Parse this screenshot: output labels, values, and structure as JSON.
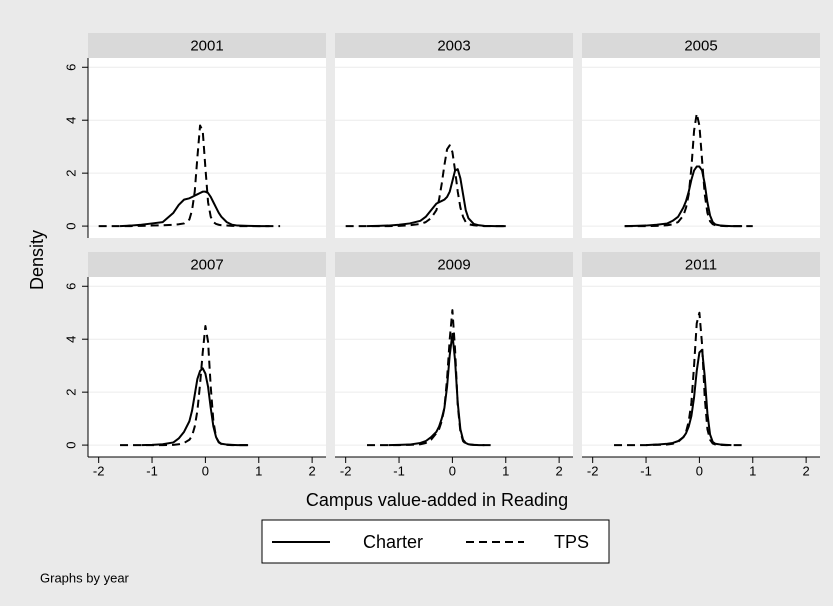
{
  "xlabel": "Campus value-added in Reading",
  "ylabel": "Density",
  "note": "Graphs by year",
  "chart_data": [
    {
      "type": "line",
      "title": "2001",
      "xlim": [
        -2.2,
        2.26
      ],
      "ylim": [
        -0.45,
        6.35
      ],
      "xticks": [
        -2,
        -1,
        0,
        1,
        2
      ],
      "yticks": [
        0,
        2,
        4,
        6
      ],
      "grid": true,
      "x": [
        -2.0,
        -1.6,
        -1.4,
        -1.2,
        -1.0,
        -0.8,
        -0.6,
        -0.5,
        -0.4,
        -0.3,
        -0.25,
        -0.2,
        -0.15,
        -0.1,
        -0.05,
        0,
        0.05,
        0.1,
        0.15,
        0.2,
        0.25,
        0.3,
        0.4,
        0.5,
        0.6,
        0.8,
        1.0,
        1.2,
        1.4
      ],
      "series": [
        {
          "name": "Charter",
          "color": "#000000",
          "dash": "solid",
          "values": [
            null,
            0,
            0.02,
            0.05,
            0.1,
            0.15,
            0.5,
            0.8,
            1.0,
            1.05,
            1.1,
            1.15,
            1.2,
            1.25,
            1.3,
            1.3,
            1.25,
            1.1,
            0.9,
            0.7,
            0.5,
            0.35,
            0.15,
            0.05,
            0.02,
            0.01,
            0,
            0,
            null
          ]
        },
        {
          "name": "TPS",
          "color": "#000000",
          "dash": "dashed",
          "values": [
            0,
            0,
            0,
            0.01,
            0.02,
            0.03,
            0.05,
            0.07,
            0.1,
            0.25,
            0.6,
            1.3,
            2.6,
            3.8,
            3.6,
            2.2,
            0.9,
            0.35,
            0.15,
            0.08,
            0.05,
            0.03,
            0.02,
            0.01,
            0,
            0,
            0,
            0,
            0
          ]
        }
      ]
    },
    {
      "type": "line",
      "title": "2003",
      "xlim": [
        -2.2,
        2.26
      ],
      "ylim": [
        -0.45,
        6.35
      ],
      "xticks": [
        -2,
        -1,
        0,
        1,
        2
      ],
      "yticks": [
        0,
        2,
        4,
        6
      ],
      "grid": true,
      "x": [
        -2.0,
        -1.6,
        -1.4,
        -1.2,
        -1.0,
        -0.8,
        -0.6,
        -0.5,
        -0.4,
        -0.3,
        -0.25,
        -0.2,
        -0.15,
        -0.1,
        -0.05,
        0,
        0.05,
        0.1,
        0.15,
        0.2,
        0.25,
        0.3,
        0.4,
        0.5,
        0.6,
        0.8,
        1.0,
        1.2,
        1.4
      ],
      "series": [
        {
          "name": "Charter",
          "color": "#000000",
          "dash": "solid",
          "values": [
            null,
            0,
            0.01,
            0.02,
            0.05,
            0.1,
            0.2,
            0.35,
            0.6,
            0.85,
            0.9,
            0.95,
            1.0,
            1.1,
            1.3,
            1.7,
            2.1,
            2.15,
            1.8,
            1.2,
            0.6,
            0.3,
            0.08,
            0.03,
            0.01,
            0,
            0,
            null,
            null
          ]
        },
        {
          "name": "TPS",
          "color": "#000000",
          "dash": "dashed",
          "values": [
            0,
            0,
            0,
            0,
            0.01,
            0.03,
            0.08,
            0.15,
            0.3,
            0.6,
            1.0,
            1.6,
            2.3,
            2.9,
            3.05,
            2.8,
            2.1,
            1.3,
            0.7,
            0.35,
            0.15,
            0.07,
            0.03,
            0.01,
            0,
            0,
            0,
            null,
            null
          ]
        }
      ]
    },
    {
      "type": "line",
      "title": "2005",
      "xlim": [
        -2.2,
        2.26
      ],
      "ylim": [
        -0.45,
        6.35
      ],
      "xticks": [
        -2,
        -1,
        0,
        1,
        2
      ],
      "yticks": [
        0,
        2,
        4,
        6
      ],
      "grid": true,
      "x": [
        -2.0,
        -1.6,
        -1.4,
        -1.2,
        -1.0,
        -0.8,
        -0.6,
        -0.5,
        -0.4,
        -0.3,
        -0.25,
        -0.2,
        -0.15,
        -0.1,
        -0.05,
        0,
        0.05,
        0.1,
        0.15,
        0.2,
        0.25,
        0.3,
        0.4,
        0.5,
        0.6,
        0.8,
        1.0,
        1.2,
        1.4
      ],
      "series": [
        {
          "name": "Charter",
          "color": "#000000",
          "dash": "solid",
          "values": [
            null,
            null,
            0,
            0.01,
            0.02,
            0.05,
            0.1,
            0.2,
            0.35,
            0.7,
            0.95,
            1.3,
            1.75,
            2.1,
            2.25,
            2.25,
            2.1,
            1.6,
            0.9,
            0.4,
            0.15,
            0.06,
            0.02,
            0.01,
            0,
            0,
            null,
            null,
            null
          ]
        },
        {
          "name": "TPS",
          "color": "#000000",
          "dash": "dashed",
          "values": [
            null,
            null,
            0,
            0,
            0,
            0.01,
            0.03,
            0.07,
            0.15,
            0.4,
            0.7,
            1.2,
            2.2,
            3.6,
            4.25,
            3.8,
            2.5,
            1.2,
            0.5,
            0.18,
            0.07,
            0.03,
            0.01,
            0,
            0,
            0,
            0,
            null,
            null
          ]
        }
      ]
    },
    {
      "type": "line",
      "title": "2007",
      "xlim": [
        -2.2,
        2.26
      ],
      "ylim": [
        -0.45,
        6.35
      ],
      "xticks": [
        -2,
        -1,
        0,
        1,
        2
      ],
      "yticks": [
        0,
        2,
        4,
        6
      ],
      "grid": true,
      "x": [
        -2.0,
        -1.6,
        -1.4,
        -1.2,
        -1.0,
        -0.8,
        -0.6,
        -0.5,
        -0.4,
        -0.3,
        -0.25,
        -0.2,
        -0.15,
        -0.1,
        -0.05,
        0,
        0.05,
        0.1,
        0.15,
        0.2,
        0.25,
        0.3,
        0.4,
        0.5,
        0.6,
        0.8,
        1.0,
        1.2,
        1.4
      ],
      "series": [
        {
          "name": "Charter",
          "color": "#000000",
          "dash": "solid",
          "values": [
            null,
            null,
            null,
            0,
            0.01,
            0.03,
            0.1,
            0.25,
            0.5,
            0.9,
            1.3,
            1.9,
            2.5,
            2.8,
            2.9,
            2.7,
            2.2,
            1.4,
            0.7,
            0.3,
            0.12,
            0.05,
            0.02,
            0.01,
            0,
            0,
            null,
            null,
            null
          ]
        },
        {
          "name": "TPS",
          "color": "#000000",
          "dash": "dashed",
          "values": [
            null,
            0,
            0,
            0,
            0,
            0,
            0.01,
            0.03,
            0.08,
            0.2,
            0.35,
            0.7,
            1.3,
            2.3,
            3.5,
            4.5,
            3.9,
            2.2,
            0.9,
            0.3,
            0.1,
            0.04,
            0.01,
            0,
            0,
            0,
            null,
            null,
            null
          ]
        }
      ]
    },
    {
      "type": "line",
      "title": "2009",
      "xlim": [
        -2.2,
        2.26
      ],
      "ylim": [
        -0.45,
        6.35
      ],
      "xticks": [
        -2,
        -1,
        0,
        1,
        2
      ],
      "yticks": [
        0,
        2,
        4,
        6
      ],
      "grid": true,
      "x": [
        -2.0,
        -1.6,
        -1.4,
        -1.2,
        -1.0,
        -0.8,
        -0.6,
        -0.5,
        -0.4,
        -0.3,
        -0.25,
        -0.2,
        -0.15,
        -0.1,
        -0.05,
        0,
        0.05,
        0.1,
        0.15,
        0.2,
        0.25,
        0.3,
        0.4,
        0.5,
        0.6,
        0.8,
        1.0,
        1.2,
        1.4
      ],
      "series": [
        {
          "name": "Charter",
          "color": "#000000",
          "dash": "solid",
          "values": [
            null,
            null,
            null,
            0,
            0.01,
            0.02,
            0.08,
            0.15,
            0.3,
            0.5,
            0.7,
            1.0,
            1.4,
            2.2,
            3.4,
            4.2,
            3.2,
            1.6,
            0.6,
            0.2,
            0.08,
            0.03,
            0.01,
            0,
            0,
            null,
            null,
            null,
            null
          ]
        },
        {
          "name": "TPS",
          "color": "#000000",
          "dash": "dashed",
          "values": [
            null,
            0,
            0,
            0,
            0,
            0.01,
            0.03,
            0.08,
            0.2,
            0.45,
            0.6,
            0.9,
            1.4,
            2.5,
            4.0,
            5.1,
            3.6,
            1.5,
            0.5,
            0.15,
            0.05,
            0.02,
            0.01,
            0,
            0,
            0,
            null,
            null,
            null
          ]
        }
      ]
    },
    {
      "type": "line",
      "title": "2011",
      "xlim": [
        -2.2,
        2.26
      ],
      "ylim": [
        -0.45,
        6.35
      ],
      "xticks": [
        -2,
        -1,
        0,
        1,
        2
      ],
      "yticks": [
        0,
        2,
        4,
        6
      ],
      "grid": true,
      "x": [
        -2.0,
        -1.6,
        -1.4,
        -1.2,
        -1.0,
        -0.8,
        -0.6,
        -0.5,
        -0.4,
        -0.3,
        -0.25,
        -0.2,
        -0.15,
        -0.1,
        -0.05,
        0,
        0.05,
        0.1,
        0.15,
        0.2,
        0.25,
        0.3,
        0.4,
        0.5,
        0.6,
        0.8,
        1.0,
        1.2,
        1.4
      ],
      "series": [
        {
          "name": "Charter",
          "color": "#000000",
          "dash": "solid",
          "values": [
            null,
            null,
            null,
            null,
            0,
            0.02,
            0.05,
            0.08,
            0.15,
            0.3,
            0.45,
            0.7,
            1.1,
            1.8,
            2.8,
            3.5,
            3.6,
            2.6,
            1.2,
            0.4,
            0.12,
            0.05,
            0.02,
            0.01,
            0,
            null,
            null,
            null,
            null
          ]
        },
        {
          "name": "TPS",
          "color": "#000000",
          "dash": "dashed",
          "values": [
            null,
            0,
            0,
            0,
            0,
            0.01,
            0.02,
            0.05,
            0.12,
            0.3,
            0.5,
            0.9,
            1.6,
            3.0,
            4.6,
            5.0,
            3.8,
            1.8,
            0.6,
            0.2,
            0.06,
            0.02,
            0.01,
            0,
            0,
            0,
            null,
            null,
            null
          ]
        }
      ]
    }
  ]
}
